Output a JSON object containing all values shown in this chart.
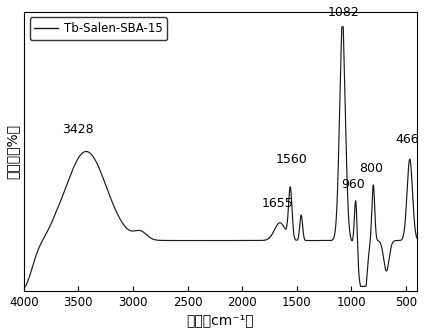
{
  "legend_label": "Tb-Salen-SBA-15",
  "xlabel": "波数（cm⁻¹）",
  "ylabel": "吸光度（%）",
  "xlim": [
    4000,
    400
  ],
  "xticks": [
    4000,
    3500,
    3000,
    2500,
    2000,
    1500,
    1000,
    500
  ],
  "line_color": "#1a1a1a",
  "bg_color": "#ffffff",
  "annot_fontsize": 9,
  "label_fontsize": 10
}
